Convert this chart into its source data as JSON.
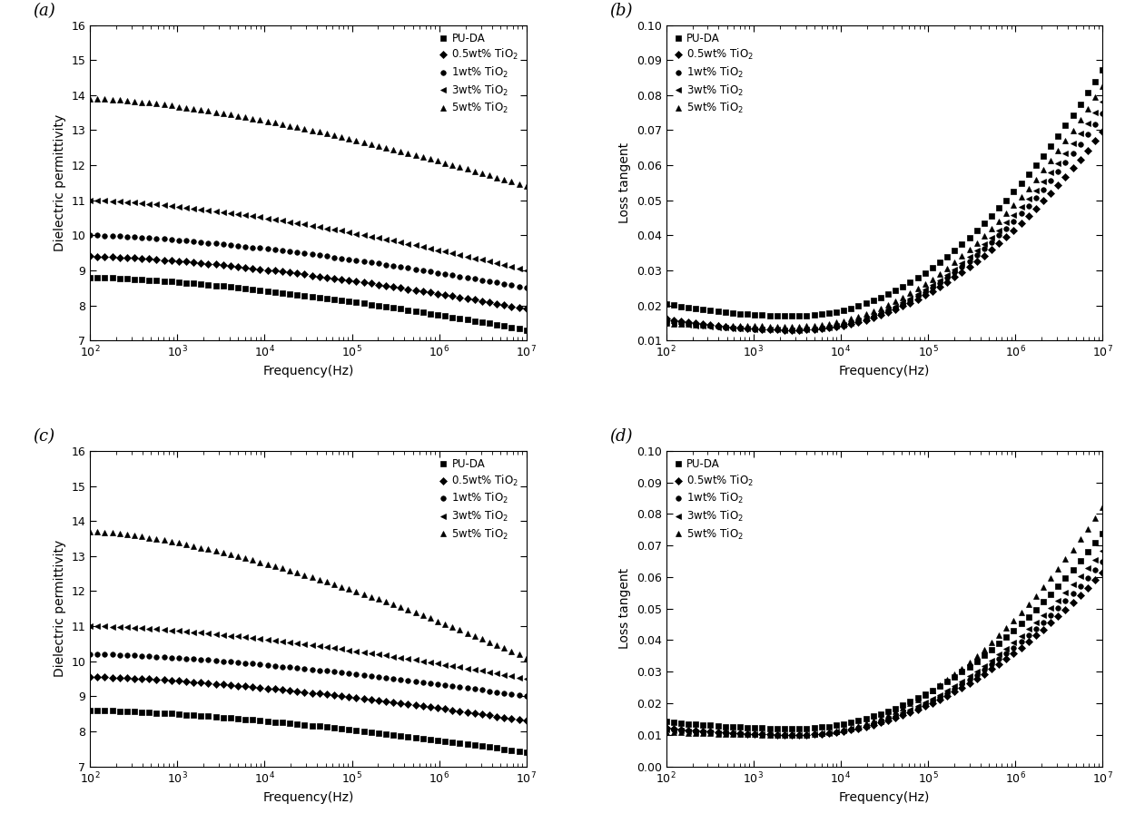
{
  "legend_labels": [
    "PU-DA",
    "0.5wt% TiO$_2$",
    "1wt% TiO$_2$",
    "3wt% TiO$_2$",
    "5wt% TiO$_2$"
  ],
  "markers": [
    "s",
    "D",
    "o",
    "<",
    "^"
  ],
  "color": "black",
  "panel_labels": [
    "(a)",
    "(b)",
    "(c)",
    "(d)"
  ],
  "freq_range": [
    100,
    10000000.0
  ],
  "ylim_perm": [
    7,
    16
  ],
  "ylim_loss_b": [
    0.01,
    0.1
  ],
  "ylim_loss_d": [
    0.0,
    0.1
  ],
  "xlabel": "Frequency(Hz)",
  "ylabel_perm": "Dielectric permittivity",
  "ylabel_loss": "Loss tangent",
  "markersize": 4,
  "perm_a_starts": [
    8.8,
    9.4,
    10.0,
    11.0,
    13.9
  ],
  "perm_a_ends": [
    7.3,
    7.9,
    8.5,
    9.0,
    11.4
  ],
  "perm_c_starts": [
    8.6,
    9.55,
    10.2,
    11.0,
    13.7
  ],
  "perm_c_ends": [
    7.4,
    8.3,
    9.0,
    9.5,
    10.1
  ],
  "loss_b_starts": [
    0.028,
    0.023,
    0.021,
    0.02,
    0.017
  ],
  "loss_b_ends": [
    0.058,
    0.046,
    0.049,
    0.051,
    0.054
  ],
  "loss_b_mins": [
    0.017,
    0.013,
    0.013,
    0.013,
    0.014
  ],
  "loss_d_starts": [
    0.019,
    0.017,
    0.016,
    0.015,
    0.013
  ],
  "loss_d_ends": [
    0.048,
    0.04,
    0.042,
    0.044,
    0.052
  ],
  "loss_d_mins": [
    0.012,
    0.01,
    0.01,
    0.01,
    0.01
  ],
  "loss_min_t": 0.3,
  "loss_shape_factor": 3.5
}
